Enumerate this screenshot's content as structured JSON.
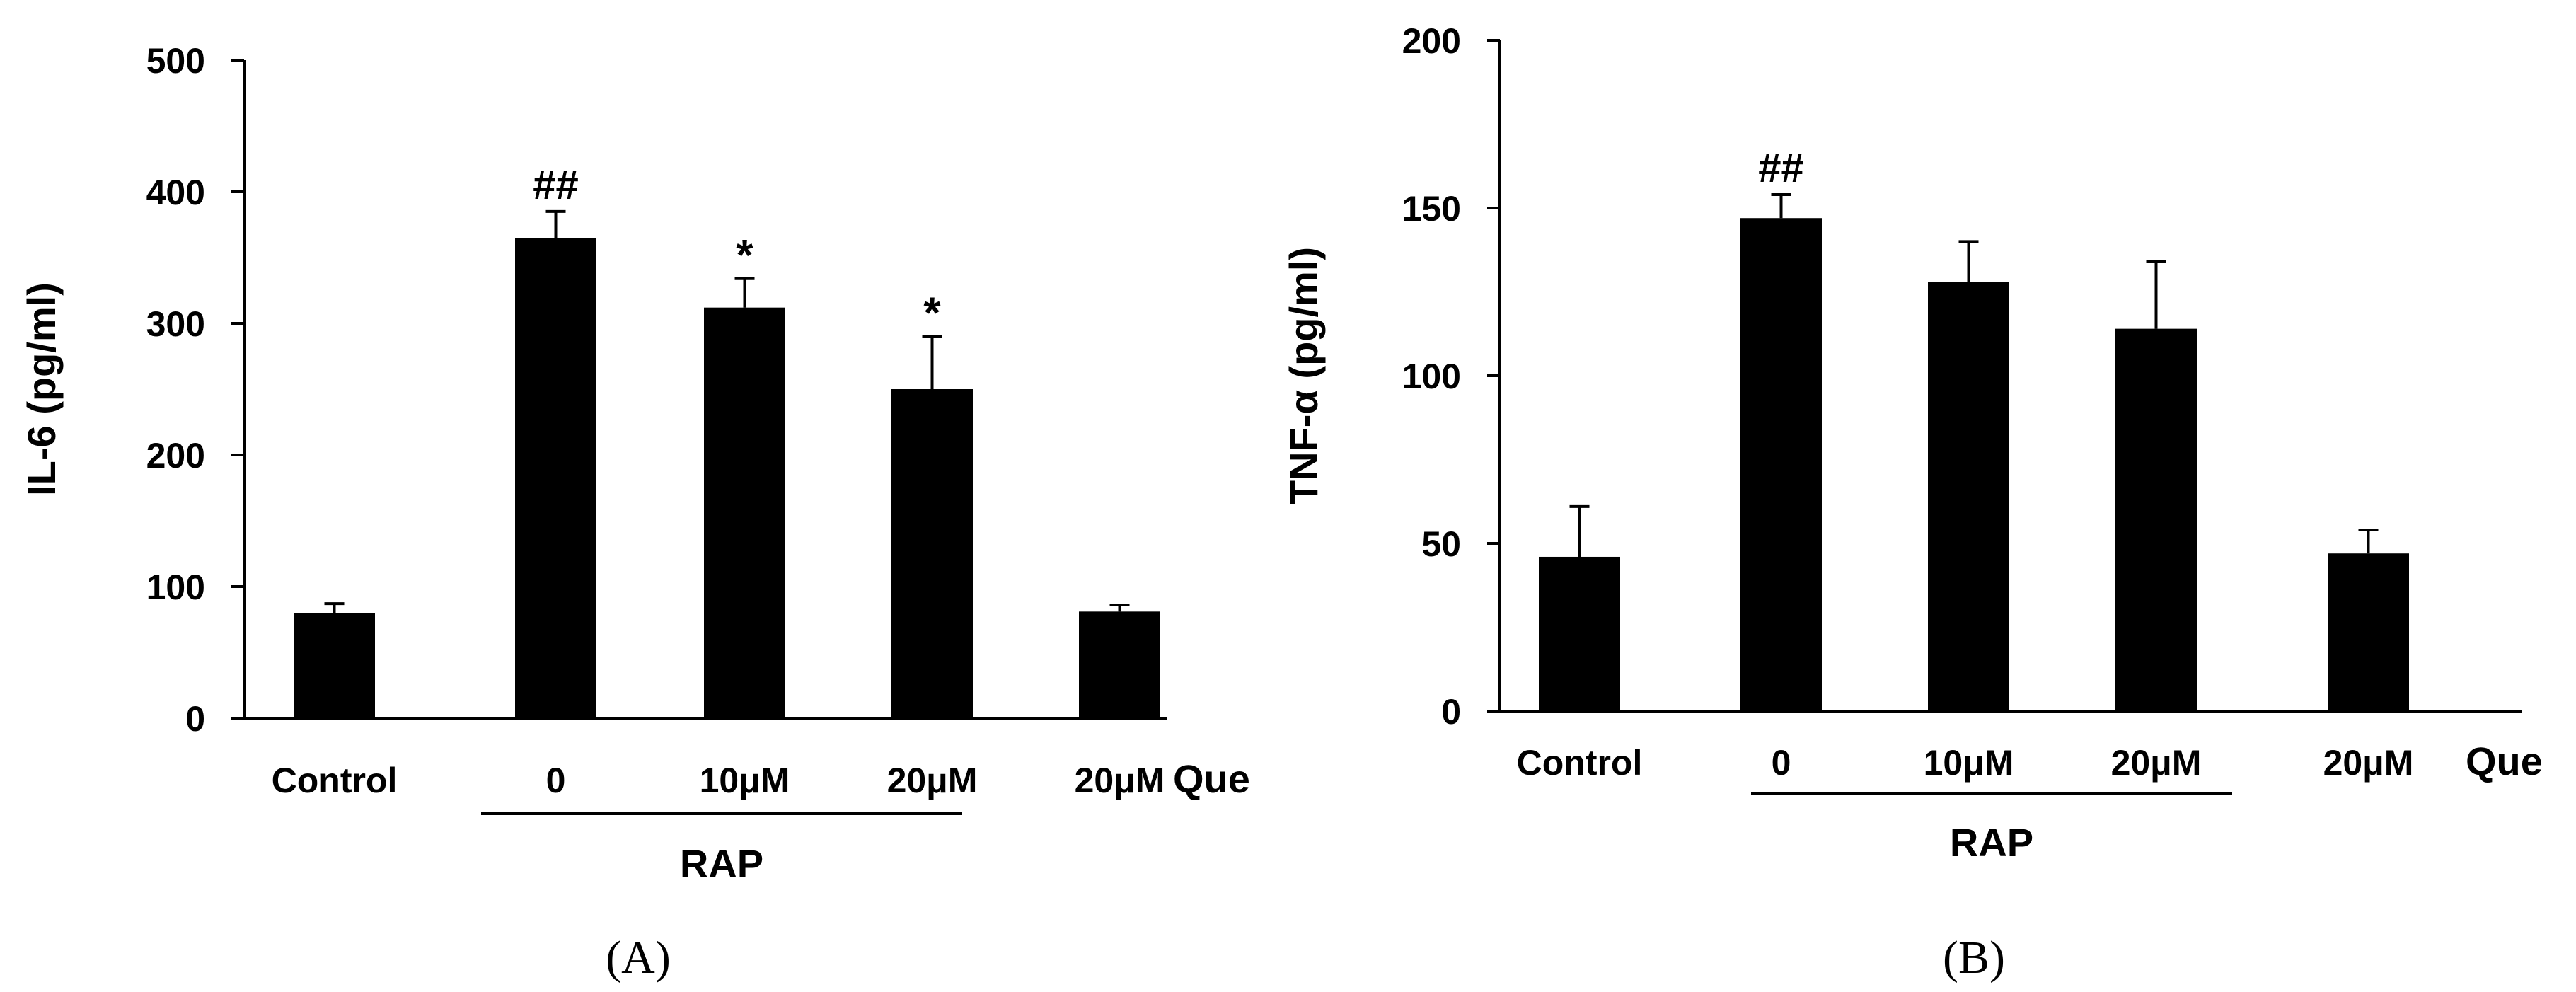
{
  "chart_data": [
    {
      "type": "bar",
      "panel_label": "(A)",
      "ylabel": "IL-6 (pg/ml)",
      "ylim": [
        0,
        500
      ],
      "yticks": [
        0,
        100,
        200,
        300,
        400,
        500
      ],
      "categories": [
        "Control",
        "0",
        "10μM",
        "20μM",
        "20μM"
      ],
      "values": [
        80,
        365,
        312,
        250,
        81
      ],
      "errors": [
        7,
        20,
        22,
        40,
        5
      ],
      "annotations": [
        "",
        "##",
        "*",
        "*",
        ""
      ],
      "group_label": "Que",
      "group_label_2": "RAP",
      "bar_color": "#000000"
    },
    {
      "type": "bar",
      "panel_label": "(B)",
      "ylabel": "TNF-α (pg/ml)",
      "ylim": [
        0,
        200
      ],
      "yticks": [
        0,
        50,
        100,
        150,
        200
      ],
      "categories": [
        "Control",
        "0",
        "10μM",
        "20μM",
        "20μM"
      ],
      "values": [
        46,
        147,
        128,
        114,
        47
      ],
      "errors": [
        15,
        7,
        12,
        20,
        7
      ],
      "annotations": [
        "",
        "##",
        "",
        "",
        ""
      ],
      "group_label": "Que",
      "group_label_2": "RAP",
      "bar_color": "#000000"
    }
  ]
}
